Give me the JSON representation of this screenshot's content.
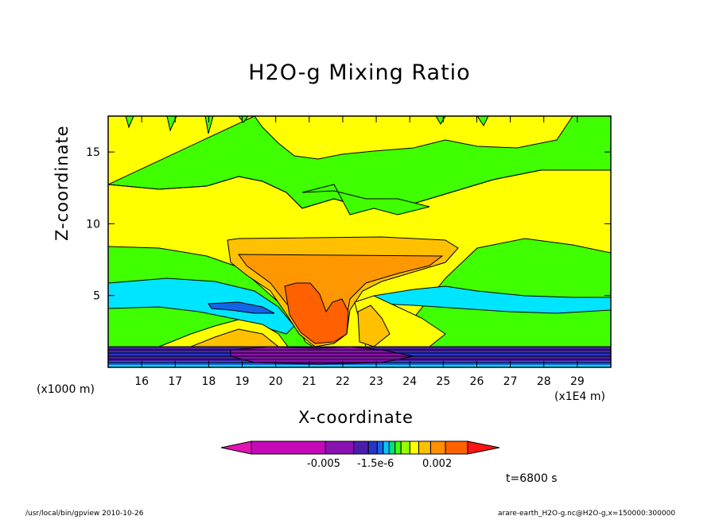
{
  "chart_data": {
    "type": "contour",
    "title": "H2O-g Mixing Ratio",
    "xlabel": "X-coordinate",
    "ylabel": "Z-coordinate",
    "x_unit_label": "(x1E4 m)",
    "y_unit_label": "(x1000 m)",
    "xlim": [
      15,
      30
    ],
    "ylim": [
      0,
      17.5
    ],
    "x_ticks": [
      "16",
      "17",
      "18",
      "19",
      "20",
      "21",
      "22",
      "23",
      "24",
      "25",
      "26",
      "27",
      "28",
      "29"
    ],
    "y_ticks": [
      "5",
      "10",
      "15"
    ],
    "colorbar_labels": [
      "-0.005",
      "-1.5e-6",
      "0.002"
    ],
    "colorbar_colors": [
      "#e414b4",
      "#c40ab8",
      "#8a12b0",
      "#4a1ea8",
      "#2a34c8",
      "#1464e8",
      "#00c8ff",
      "#00e080",
      "#40ff00",
      "#98ff00",
      "#ffff00",
      "#ffc000",
      "#ff9000",
      "#ff6000",
      "#ff1414"
    ],
    "time_label": "t=6800 s",
    "grid": false,
    "legend": "colorbar-bottom"
  },
  "footer": {
    "left": "/usr/local/bin/gpview  2010-10-26",
    "right": "arare-earth_H2O-g.nc@H2O-g,x=150000:300000"
  }
}
